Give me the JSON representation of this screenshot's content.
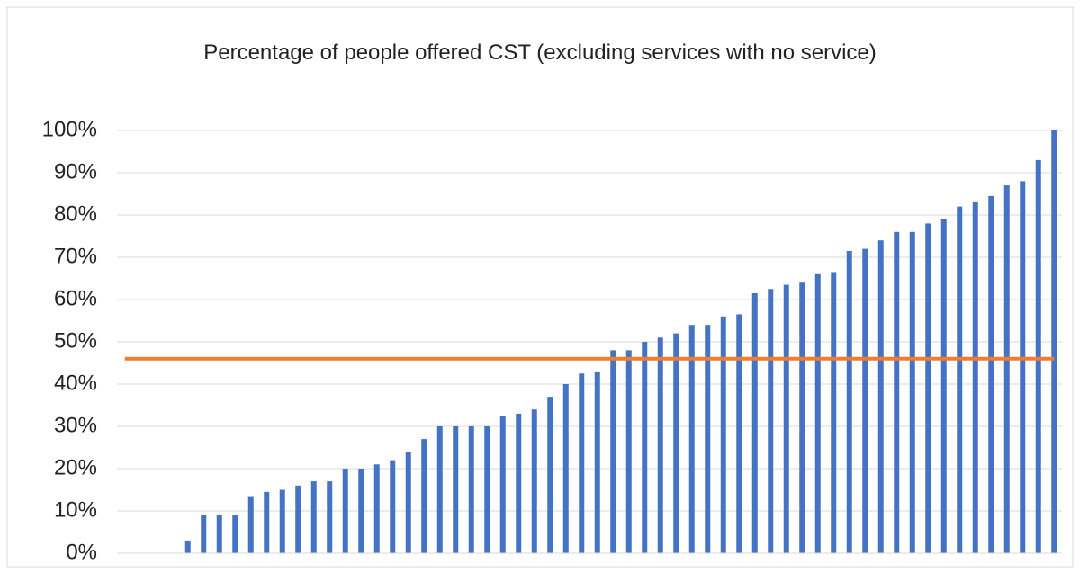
{
  "chart_data": {
    "type": "bar",
    "title": "Percentage of people offered CST (excluding services with no service)",
    "categories": [
      null,
      null,
      null,
      null,
      null,
      null,
      null,
      null,
      null,
      null,
      null,
      null,
      null,
      null,
      null,
      null,
      null,
      null,
      null,
      null,
      null,
      null,
      null,
      null,
      null,
      null,
      null,
      null,
      null,
      null,
      null,
      null,
      null,
      null,
      null,
      null,
      null,
      null,
      null,
      null,
      null,
      null,
      null,
      null,
      null,
      null,
      null,
      null,
      null,
      null,
      null,
      null,
      null,
      null,
      null,
      null,
      null,
      null,
      null,
      null
    ],
    "series": [
      {
        "type": "bar",
        "color": "#4472c4",
        "values": [
          0,
          0,
          0,
          0,
          3,
          9,
          9,
          9,
          13.5,
          14.5,
          15,
          16,
          17,
          17,
          20,
          20,
          21,
          22,
          24,
          27,
          30,
          30,
          30,
          30,
          32.5,
          33,
          34,
          37,
          40,
          42.5,
          43,
          48,
          48,
          50,
          51,
          52,
          54,
          54,
          56,
          56.5,
          61.5,
          62.5,
          63.5,
          64,
          66,
          66.5,
          71.5,
          72,
          74,
          76,
          76,
          78,
          79,
          82,
          83,
          84.5,
          87,
          88,
          93,
          100
        ]
      },
      {
        "type": "line",
        "color": "#ed7d31",
        "values": [
          46,
          46,
          46,
          46,
          46,
          46,
          46,
          46,
          46,
          46,
          46,
          46,
          46,
          46,
          46,
          46,
          46,
          46,
          46,
          46,
          46,
          46,
          46,
          46,
          46,
          46,
          46,
          46,
          46,
          46,
          46,
          46,
          46,
          46,
          46,
          46,
          46,
          46,
          46,
          46,
          46,
          46,
          46,
          46,
          46,
          46,
          46,
          46,
          46,
          46,
          46,
          46,
          46,
          46,
          46,
          46,
          46,
          46,
          46,
          46
        ]
      }
    ],
    "ylim": [
      0,
      100
    ],
    "yticks": [
      {
        "value": 0,
        "label": "0%"
      },
      {
        "value": 10,
        "label": "10%"
      },
      {
        "value": 20,
        "label": "20%"
      },
      {
        "value": 30,
        "label": "30%"
      },
      {
        "value": 40,
        "label": "40%"
      },
      {
        "value": 50,
        "label": "50%"
      },
      {
        "value": 60,
        "label": "60%"
      },
      {
        "value": 70,
        "label": "70%"
      },
      {
        "value": 80,
        "label": "80%"
      },
      {
        "value": 90,
        "label": "90%"
      },
      {
        "value": 100,
        "label": "100%"
      }
    ],
    "grid": true
  }
}
